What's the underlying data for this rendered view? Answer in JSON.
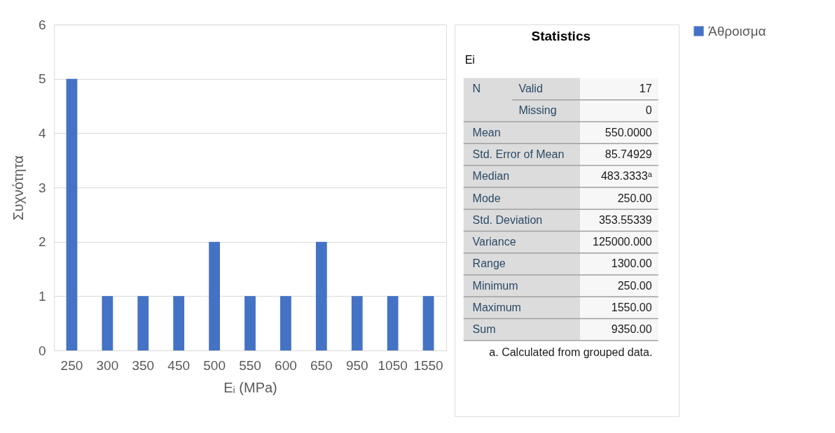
{
  "chart_data": [
    {
      "type": "bar",
      "xlabel": "Eᵢ (MPa)",
      "ylabel": "Συχνότητα",
      "categories": [
        "250",
        "300",
        "350",
        "450",
        "500",
        "550",
        "600",
        "650",
        "950",
        "1050",
        "1550"
      ],
      "series": [
        {
          "name": "Άθροισμα",
          "color": "#4472c4",
          "values": [
            5,
            1,
            1,
            1,
            2,
            1,
            1,
            2,
            1,
            1,
            1
          ]
        }
      ],
      "ylim": [
        0,
        6
      ],
      "yticks": [
        0,
        1,
        2,
        3,
        4,
        5,
        6
      ],
      "grid": "y",
      "legend": "right"
    },
    {
      "type": "other",
      "title": "Statistics",
      "subtitle": "Ei",
      "annotations": [
        "N",
        "Valid",
        "17",
        "Missing",
        "0",
        "Mean",
        "550.0000",
        "Std. Error of Mean",
        "85.74929",
        "Median",
        "483.3333ᵃ",
        "Mode",
        "250.00",
        "Std. Deviation",
        "353.55339",
        "Variance",
        "125000.000",
        "Range",
        "1300.00",
        "Minimum",
        "250.00",
        "Maximum",
        "1550.00",
        "Sum",
        "9350.00",
        "a. Calculated from grouped data."
      ]
    }
  ]
}
